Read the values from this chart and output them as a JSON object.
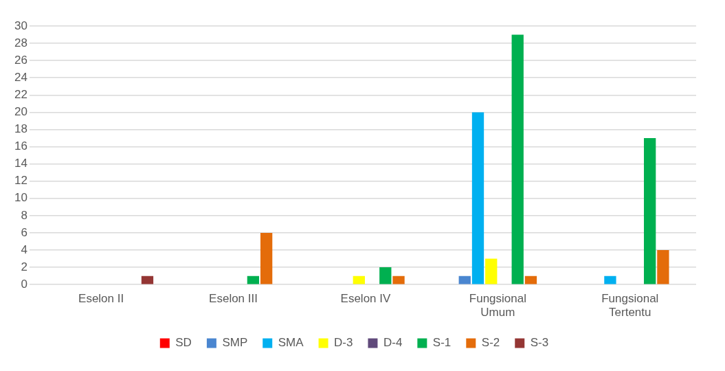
{
  "chart_data": {
    "type": "bar",
    "categories": [
      "Eselon II",
      "Eselon III",
      "Eselon IV",
      "Fungsional Umum",
      "Fungsional Tertentu"
    ],
    "series": [
      {
        "name": "SD",
        "color": "#ff0000",
        "values": [
          0,
          0,
          0,
          0,
          0
        ]
      },
      {
        "name": "SMP",
        "color": "#4a86d0",
        "values": [
          0,
          0,
          0,
          1,
          0
        ]
      },
      {
        "name": "SMA",
        "color": "#00b0f0",
        "values": [
          0,
          0,
          0,
          20,
          1
        ]
      },
      {
        "name": "D-3",
        "color": "#ffff00",
        "values": [
          0,
          0,
          1,
          3,
          0
        ]
      },
      {
        "name": "D-4",
        "color": "#604a7b",
        "values": [
          0,
          0,
          0,
          0,
          0
        ]
      },
      {
        "name": "S-1",
        "color": "#00b050",
        "values": [
          0,
          1,
          2,
          29,
          17
        ]
      },
      {
        "name": "S-2",
        "color": "#e46c0a",
        "values": [
          0,
          6,
          1,
          1,
          4
        ]
      },
      {
        "name": "S-3",
        "color": "#943634",
        "values": [
          1,
          0,
          0,
          0,
          0
        ]
      }
    ],
    "ylim": [
      0,
      30
    ],
    "yticks": [
      0,
      2,
      4,
      6,
      8,
      10,
      12,
      14,
      16,
      18,
      20,
      22,
      24,
      26,
      28,
      30
    ],
    "grid": "y",
    "legend": "bottom"
  }
}
